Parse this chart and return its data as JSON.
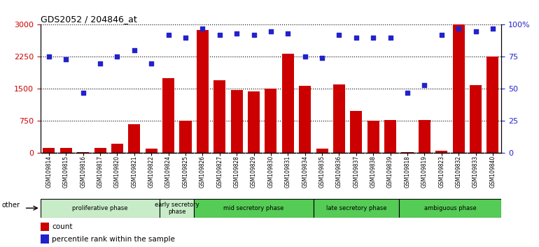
{
  "title": "GDS2052 / 204846_at",
  "samples": [
    "GSM109814",
    "GSM109815",
    "GSM109816",
    "GSM109817",
    "GSM109820",
    "GSM109821",
    "GSM109822",
    "GSM109824",
    "GSM109825",
    "GSM109826",
    "GSM109827",
    "GSM109828",
    "GSM109829",
    "GSM109830",
    "GSM109831",
    "GSM109834",
    "GSM109835",
    "GSM109836",
    "GSM109837",
    "GSM109838",
    "GSM109839",
    "GSM109818",
    "GSM109819",
    "GSM109823",
    "GSM109832",
    "GSM109833",
    "GSM109840"
  ],
  "counts": [
    130,
    120,
    30,
    120,
    220,
    670,
    110,
    1750,
    750,
    2870,
    1700,
    1480,
    1440,
    1510,
    2330,
    1570,
    110,
    1610,
    990,
    750,
    780,
    30,
    770,
    60,
    3000,
    1590,
    2250
  ],
  "percentile": [
    75,
    73,
    47,
    70,
    75,
    80,
    70,
    92,
    90,
    97,
    92,
    93,
    92,
    95,
    93,
    75,
    74,
    92,
    90,
    90,
    90,
    47,
    53,
    92,
    97,
    95,
    97
  ],
  "phases": [
    {
      "label": "proliferative phase",
      "start": 0,
      "end": 7,
      "color": "#c8ecc8"
    },
    {
      "label": "early secretory\nphase",
      "start": 7,
      "end": 9,
      "color": "#c8ecc8"
    },
    {
      "label": "mid secretory phase",
      "start": 9,
      "end": 16,
      "color": "#55cc55"
    },
    {
      "label": "late secretory phase",
      "start": 16,
      "end": 21,
      "color": "#55cc55"
    },
    {
      "label": "ambiguous phase",
      "start": 21,
      "end": 27,
      "color": "#55cc55"
    }
  ],
  "ylim_left": [
    0,
    3000
  ],
  "ylim_right": [
    0,
    100
  ],
  "yticks_left": [
    0,
    750,
    1500,
    2250,
    3000
  ],
  "yticks_right": [
    0,
    25,
    50,
    75,
    100
  ],
  "bar_color": "#cc0000",
  "scatter_color": "#2222cc",
  "background_color": "#ffffff",
  "tick_bg_color": "#cccccc",
  "left_axis_color": "#cc0000",
  "right_axis_color": "#2222cc"
}
